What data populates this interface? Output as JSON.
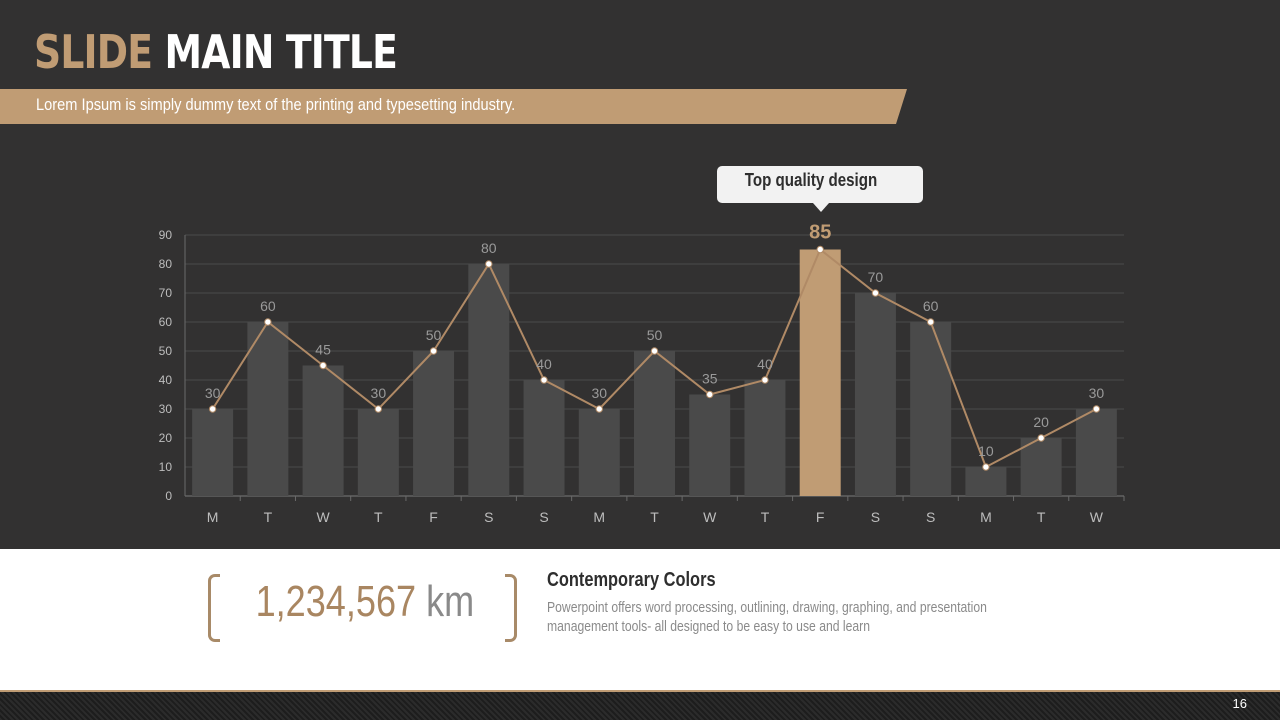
{
  "slide": {
    "title_accent": "SLIDE",
    "title_main": "MAIN TITLE",
    "subtitle": "Lorem Ipsum is simply dummy text of the printing and typesetting industry.",
    "page_number": "16"
  },
  "callout": {
    "text": "Top quality design"
  },
  "stat": {
    "value": "1,234,567",
    "unit": "km"
  },
  "description": {
    "title": "Contemporary Colors",
    "body": "Powerpoint offers word processing, outlining, drawing, graphing, and presentation management tools- all designed to be easy to use and learn"
  },
  "colors": {
    "background_dark": "#323131",
    "accent": "#c09c74",
    "bar": "#4a4a4a",
    "line": "#b08a66"
  },
  "chart_data": {
    "type": "bar",
    "categories": [
      "M",
      "T",
      "W",
      "T",
      "F",
      "S",
      "S",
      "M",
      "T",
      "W",
      "T",
      "F",
      "S",
      "S",
      "M",
      "T",
      "W"
    ],
    "values": [
      30,
      60,
      45,
      30,
      50,
      80,
      40,
      30,
      50,
      35,
      40,
      85,
      70,
      60,
      10,
      20,
      30
    ],
    "highlight_index": 11,
    "overlay_line": true,
    "ylim": [
      0,
      90
    ],
    "yticks": [
      0,
      10,
      20,
      30,
      40,
      50,
      60,
      70,
      80,
      90
    ],
    "grid": true,
    "title": "",
    "xlabel": "",
    "ylabel": ""
  }
}
